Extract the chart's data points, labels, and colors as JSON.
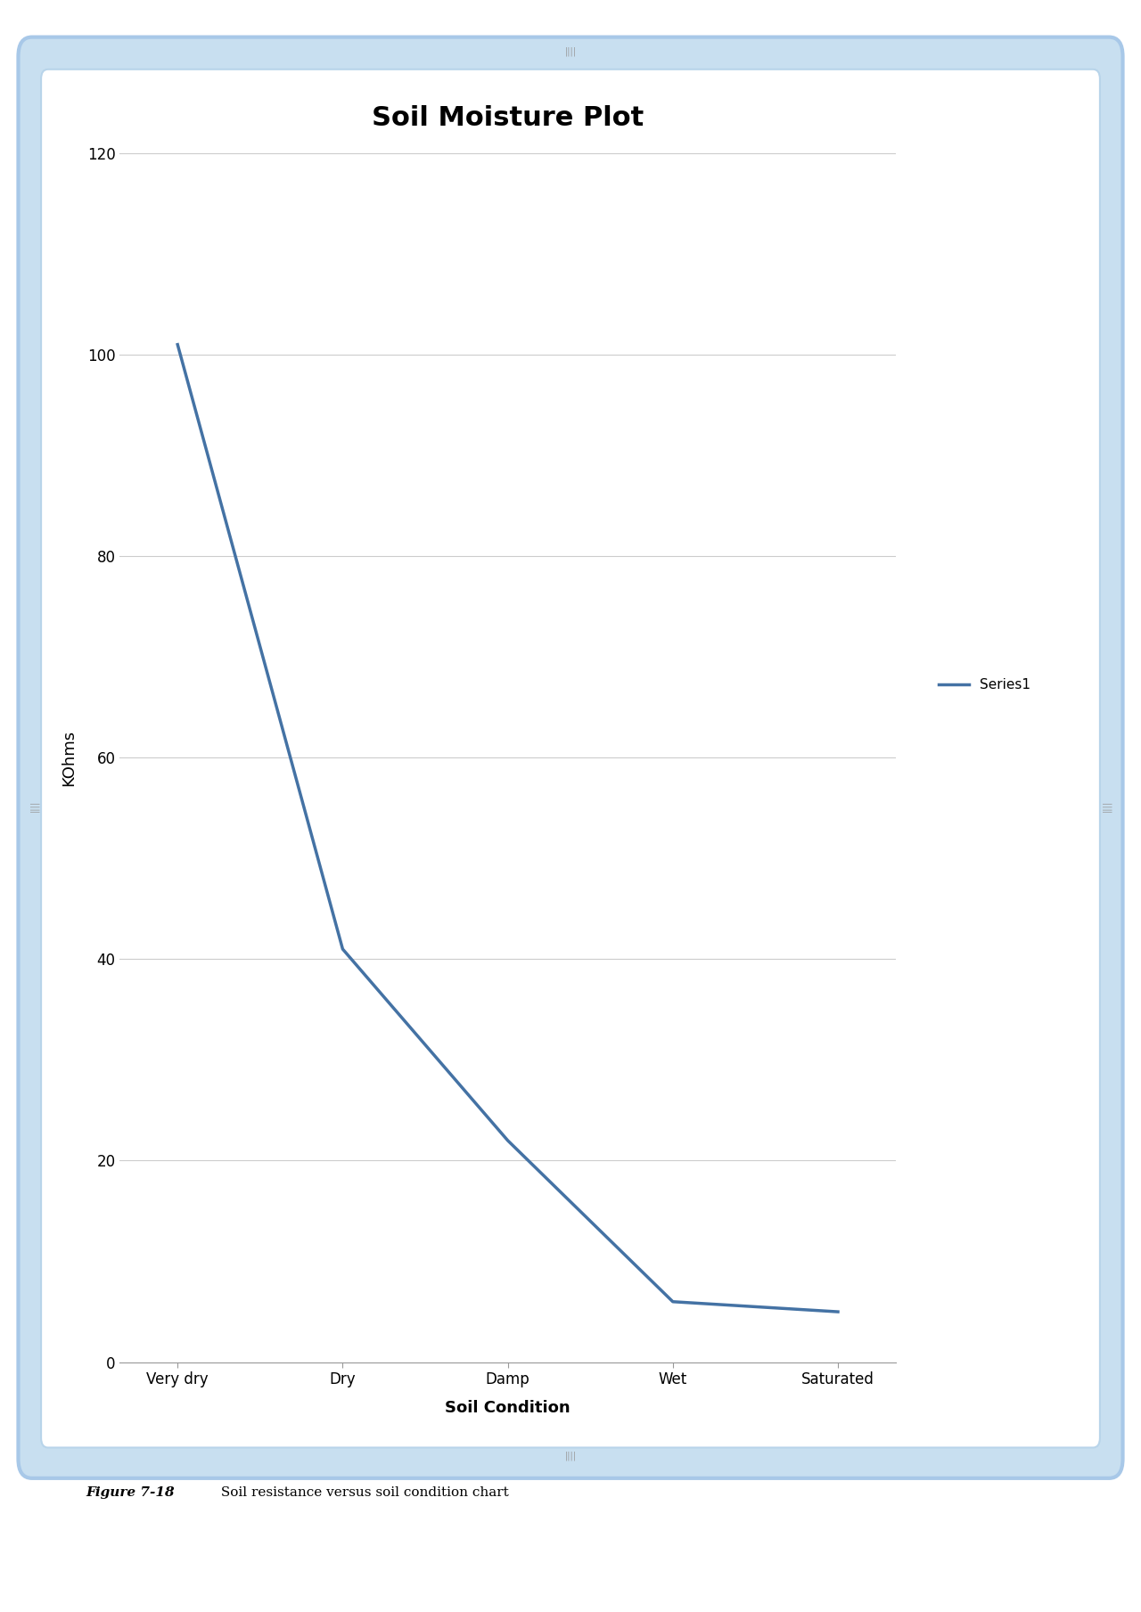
{
  "title": "Soil Moisture Plot",
  "xlabel": "Soil Condition",
  "ylabel": "KOhms",
  "categories": [
    "Very dry",
    "Dry",
    "Damp",
    "Wet",
    "Saturated"
  ],
  "values": [
    101,
    41,
    22,
    6,
    5
  ],
  "line_color": "#4472a4",
  "line_width": 2.5,
  "ylim": [
    0,
    120
  ],
  "yticks": [
    0,
    20,
    40,
    60,
    80,
    100,
    120
  ],
  "legend_label": "Series1",
  "bg_color": "#ffffff",
  "fig_bg_color": "#ffffff",
  "outer_border_color": "#a8c8e8",
  "outer_border_fill": "#c8dff0",
  "inner_border_color": "#b8d4ea",
  "caption_bold": "Figure 7-18",
  "caption_rest": " Soil resistance versus soil condition chart",
  "title_fontsize": 22,
  "axis_label_fontsize": 13,
  "tick_fontsize": 12,
  "legend_fontsize": 11,
  "caption_fontsize": 11,
  "grid_color": "#cccccc",
  "spine_color": "#999999"
}
